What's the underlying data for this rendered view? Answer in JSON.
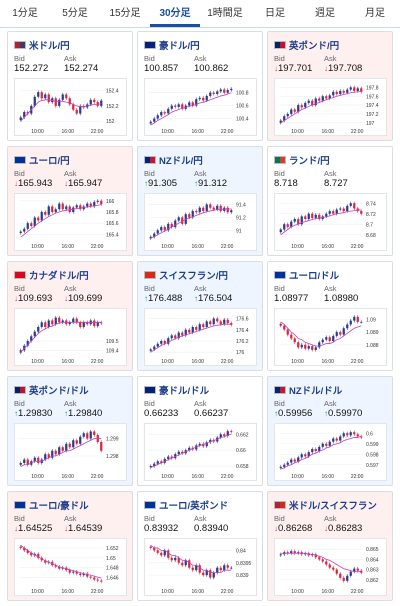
{
  "timeframe_tabs": [
    {
      "label": "1分足",
      "active": false
    },
    {
      "label": "5分足",
      "active": false
    },
    {
      "label": "15分足",
      "active": false
    },
    {
      "label": "30分足",
      "active": true
    },
    {
      "label": "1時間足",
      "active": false
    },
    {
      "label": "日足",
      "active": false
    },
    {
      "label": "週足",
      "active": false
    },
    {
      "label": "月足",
      "active": false
    }
  ],
  "labels": {
    "bid": "Bid",
    "ask": "Ask"
  },
  "colors": {
    "up_candle": "#2a3b8f",
    "down_candle": "#d9263b",
    "ma_line": "#c23fbf",
    "up_arrow": "#18a34a",
    "down_arrow": "#d6336c"
  },
  "pairs": [
    {
      "name": "米ドル/円",
      "flag": [
        "#b22234",
        "#3c3b6e"
      ],
      "bg": "white",
      "bid": "152.272",
      "ask": "152.274",
      "dir": "none",
      "x_ticks": [
        "10:00",
        "16:00",
        "22:00"
      ],
      "y_ticks": [
        "152.4",
        "152.2",
        "152"
      ],
      "y_range": [
        151.95,
        152.5
      ],
      "closes": [
        152.05,
        152.12,
        152.1,
        152.2,
        152.32,
        152.38,
        152.3,
        152.35,
        152.25,
        152.3,
        152.2,
        152.28,
        152.35,
        152.3,
        152.22,
        152.15,
        152.1,
        152.2,
        152.18,
        152.22,
        152.28,
        152.25,
        152.2,
        152.27
      ],
      "ma": [
        152.0,
        152.05,
        152.1,
        152.15,
        152.2,
        152.25,
        152.27,
        152.28,
        152.28,
        152.27,
        152.26,
        152.26,
        152.26,
        152.25,
        152.24,
        152.22,
        152.2,
        152.19,
        152.19,
        152.2,
        152.21,
        152.22,
        152.22,
        152.23
      ]
    },
    {
      "name": "豪ドル/円",
      "flag": [
        "#00247d",
        "#00247d"
      ],
      "bg": "white",
      "bid": "100.857",
      "ask": "100.862",
      "dir": "none",
      "x_ticks": [
        "10:00",
        "16:00",
        "22:00"
      ],
      "y_ticks": [
        "100.8",
        "100.6",
        "100.4"
      ],
      "y_range": [
        100.3,
        100.95
      ],
      "closes": [
        100.35,
        100.4,
        100.45,
        100.5,
        100.48,
        100.55,
        100.6,
        100.58,
        100.62,
        100.55,
        100.6,
        100.65,
        100.6,
        100.7,
        100.72,
        100.68,
        100.75,
        100.8,
        100.78,
        100.82,
        100.85,
        100.8,
        100.84,
        100.86
      ],
      "ma": [
        100.3,
        100.33,
        100.37,
        100.4,
        100.43,
        100.46,
        100.5,
        100.52,
        100.54,
        100.56,
        100.57,
        100.59,
        100.6,
        100.62,
        100.64,
        100.65,
        100.67,
        100.69,
        100.71,
        100.73,
        100.75,
        100.76,
        100.78,
        100.8
      ]
    },
    {
      "name": "英ポンド/円",
      "flag": [
        "#012169",
        "#c8102e"
      ],
      "bg": "pink",
      "bid": "197.701",
      "ask": "197.708",
      "dir": "down",
      "x_ticks": [
        "10:00",
        "16:00",
        "22:00"
      ],
      "y_ticks": [
        "197.8",
        "197.6",
        "197.4",
        "197.2",
        "197"
      ],
      "y_range": [
        196.95,
        197.9
      ],
      "closes": [
        197.05,
        197.15,
        197.2,
        197.3,
        197.25,
        197.4,
        197.35,
        197.45,
        197.5,
        197.4,
        197.55,
        197.5,
        197.6,
        197.55,
        197.62,
        197.7,
        197.65,
        197.72,
        197.68,
        197.75,
        197.8,
        197.72,
        197.78,
        197.7
      ],
      "ma": [
        197.0,
        197.05,
        197.1,
        197.15,
        197.2,
        197.25,
        197.3,
        197.33,
        197.37,
        197.4,
        197.43,
        197.46,
        197.49,
        197.52,
        197.55,
        197.57,
        197.6,
        197.62,
        197.64,
        197.66,
        197.68,
        197.69,
        197.7,
        197.71
      ]
    },
    {
      "name": "ユーロ/円",
      "flag": [
        "#003399",
        "#003399"
      ],
      "bg": "pink",
      "bid": "165.943",
      "ask": "165.947",
      "dir": "down",
      "x_ticks": [
        "10:00",
        "16:00",
        "22:00"
      ],
      "y_ticks": [
        "166",
        "165.8",
        "165.6",
        "165.4"
      ],
      "y_range": [
        165.3,
        166.05
      ],
      "closes": [
        165.45,
        165.5,
        165.6,
        165.55,
        165.7,
        165.65,
        165.8,
        165.75,
        165.9,
        165.8,
        165.85,
        165.95,
        165.85,
        165.9,
        165.8,
        165.88,
        165.92,
        165.85,
        165.9,
        165.95,
        165.9,
        165.98,
        166.0,
        165.94
      ],
      "ma": [
        165.35,
        165.4,
        165.45,
        165.5,
        165.55,
        165.6,
        165.64,
        165.68,
        165.72,
        165.75,
        165.78,
        165.8,
        165.82,
        165.83,
        165.84,
        165.85,
        165.86,
        165.87,
        165.88,
        165.89,
        165.9,
        165.91,
        165.92,
        165.93
      ]
    },
    {
      "name": "NZドル/円",
      "flag": [
        "#00247d",
        "#cc142b"
      ],
      "bg": "blue",
      "bid": "91.305",
      "ask": "91.312",
      "dir": "up",
      "x_ticks": [
        "10:00",
        "16:00",
        "22:00"
      ],
      "y_ticks": [
        "91.4",
        "91.2",
        "91"
      ],
      "y_range": [
        90.85,
        91.5
      ],
      "closes": [
        90.9,
        90.95,
        91.0,
        91.05,
        91.0,
        91.1,
        91.05,
        91.15,
        91.2,
        91.1,
        91.25,
        91.2,
        91.3,
        91.28,
        91.35,
        91.3,
        91.4,
        91.35,
        91.32,
        91.38,
        91.3,
        91.35,
        91.28,
        91.31
      ],
      "ma": [
        90.88,
        90.9,
        90.93,
        90.96,
        90.99,
        91.02,
        91.05,
        91.08,
        91.11,
        91.14,
        91.17,
        91.19,
        91.21,
        91.23,
        91.25,
        91.27,
        91.29,
        91.3,
        91.31,
        91.32,
        91.32,
        91.33,
        91.33,
        91.33
      ]
    },
    {
      "name": "ランド/円",
      "flag": [
        "#007a4d",
        "#de3831"
      ],
      "bg": "white",
      "bid": "8.718",
      "ask": "8.727",
      "dir": "none",
      "x_ticks": [
        "10:00",
        "16:00",
        "22:00"
      ],
      "y_ticks": [
        "8.74",
        "8.72",
        "8.7",
        "8.68"
      ],
      "y_range": [
        8.67,
        8.75
      ],
      "closes": [
        8.69,
        8.7,
        8.695,
        8.705,
        8.71,
        8.7,
        8.715,
        8.71,
        8.72,
        8.712,
        8.718,
        8.71,
        8.715,
        8.72,
        8.725,
        8.72,
        8.728,
        8.73,
        8.725,
        8.735,
        8.74,
        8.73,
        8.725,
        8.72
      ],
      "ma": [
        8.68,
        8.685,
        8.69,
        8.695,
        8.698,
        8.7,
        8.703,
        8.705,
        8.707,
        8.709,
        8.711,
        8.712,
        8.713,
        8.714,
        8.716,
        8.718,
        8.72,
        8.721,
        8.722,
        8.724,
        8.725,
        8.726,
        8.727,
        8.727
      ]
    },
    {
      "name": "カナダドル/円",
      "flag": [
        "#d80621",
        "#d80621"
      ],
      "bg": "pink",
      "bid": "109.693",
      "ask": "109.699",
      "dir": "down",
      "x_ticks": [
        "10:00",
        "16:00",
        "22:00"
      ],
      "y_ticks": [
        "109.5",
        "109.4"
      ],
      "y_range": [
        109.35,
        109.8
      ],
      "closes": [
        109.4,
        109.45,
        109.5,
        109.55,
        109.6,
        109.65,
        109.7,
        109.65,
        109.72,
        109.68,
        109.75,
        109.7,
        109.72,
        109.68,
        109.7,
        109.74,
        109.7,
        109.65,
        109.7,
        109.68,
        109.72,
        109.66,
        109.7,
        109.69
      ],
      "ma": [
        109.38,
        109.42,
        109.46,
        109.5,
        109.54,
        109.58,
        109.61,
        109.63,
        109.65,
        109.66,
        109.68,
        109.69,
        109.7,
        109.7,
        109.7,
        109.7,
        109.7,
        109.7,
        109.7,
        109.7,
        109.7,
        109.7,
        109.7,
        109.7
      ]
    },
    {
      "name": "スイスフラン/円",
      "flag": [
        "#d52b1e",
        "#d52b1e"
      ],
      "bg": "blue",
      "bid": "176.488",
      "ask": "176.504",
      "dir": "up",
      "x_ticks": [
        "10:00",
        "16:00",
        "22:00"
      ],
      "y_ticks": [
        "176.6",
        "176.4",
        "176.2",
        "176"
      ],
      "y_range": [
        175.95,
        176.7
      ],
      "closes": [
        176.05,
        176.1,
        176.15,
        176.2,
        176.15,
        176.25,
        176.3,
        176.25,
        176.35,
        176.3,
        176.4,
        176.35,
        176.45,
        176.4,
        176.5,
        176.45,
        176.55,
        176.5,
        176.6,
        176.55,
        176.5,
        176.58,
        176.52,
        176.49
      ],
      "ma": [
        176.0,
        176.04,
        176.08,
        176.12,
        176.15,
        176.18,
        176.21,
        176.24,
        176.27,
        176.29,
        176.31,
        176.33,
        176.35,
        176.37,
        176.39,
        176.41,
        176.43,
        176.45,
        176.47,
        176.48,
        176.49,
        176.5,
        176.5,
        176.5
      ]
    },
    {
      "name": "ユーロ/ドル",
      "flag": [
        "#003399",
        "#003399"
      ],
      "bg": "white",
      "bid": "1.08977",
      "ask": "1.08980",
      "dir": "none",
      "x_ticks": [
        "10:00",
        "16:00",
        "22:00"
      ],
      "y_ticks": [
        "1.09",
        "1.089",
        "1.088"
      ],
      "y_range": [
        1.0872,
        1.0905
      ],
      "closes": [
        1.0895,
        1.0892,
        1.0888,
        1.0885,
        1.0882,
        1.0878,
        1.088,
        1.0877,
        1.0879,
        1.0876,
        1.0878,
        1.0882,
        1.0884,
        1.0886,
        1.0883,
        1.0887,
        1.089,
        1.0888,
        1.0893,
        1.0896,
        1.0899,
        1.0902,
        1.0898,
        1.0898
      ],
      "ma": [
        1.0898,
        1.0896,
        1.0893,
        1.089,
        1.0888,
        1.0885,
        1.0884,
        1.0882,
        1.0881,
        1.088,
        1.0879,
        1.0879,
        1.088,
        1.0881,
        1.0881,
        1.0882,
        1.0884,
        1.0885,
        1.0887,
        1.0889,
        1.0891,
        1.0893,
        1.0894,
        1.0895
      ]
    },
    {
      "name": "英ポンド/ドル",
      "flag": [
        "#012169",
        "#c8102e"
      ],
      "bg": "blue",
      "bid": "1.29830",
      "ask": "1.29840",
      "dir": "up",
      "x_ticks": [
        "10:00",
        "16:00",
        "22:00"
      ],
      "y_ticks": [
        "1.299",
        "1.298"
      ],
      "y_range": [
        1.2972,
        1.2996
      ],
      "closes": [
        1.2976,
        1.2978,
        1.2975,
        1.2977,
        1.2979,
        1.2976,
        1.2978,
        1.2981,
        1.2979,
        1.2983,
        1.2981,
        1.2985,
        1.2983,
        1.2987,
        1.2985,
        1.2989,
        1.2987,
        1.2991,
        1.2993,
        1.299,
        1.2994,
        1.2992,
        1.2988,
        1.2983
      ],
      "ma": [
        1.2974,
        1.2975,
        1.2975,
        1.2976,
        1.2977,
        1.2977,
        1.2977,
        1.2978,
        1.2979,
        1.298,
        1.298,
        1.2981,
        1.2982,
        1.2983,
        1.2983,
        1.2984,
        1.2985,
        1.2986,
        1.2987,
        1.2988,
        1.2989,
        1.299,
        1.299,
        1.299
      ]
    },
    {
      "name": "豪ドル/ドル",
      "flag": [
        "#00247d",
        "#00247d"
      ],
      "bg": "white",
      "bid": "0.66233",
      "ask": "0.66237",
      "dir": "none",
      "x_ticks": [
        "10:00",
        "16:00",
        "22:00"
      ],
      "y_ticks": [
        "0.662",
        "0.66",
        "0.658"
      ],
      "y_range": [
        0.6575,
        0.6628
      ],
      "closes": [
        0.658,
        0.6583,
        0.6586,
        0.6584,
        0.6589,
        0.6592,
        0.659,
        0.6595,
        0.6598,
        0.6596,
        0.66,
        0.6603,
        0.6601,
        0.6606,
        0.6608,
        0.6605,
        0.661,
        0.6613,
        0.6611,
        0.6616,
        0.662,
        0.6618,
        0.6624,
        0.6623
      ],
      "ma": [
        0.6578,
        0.658,
        0.6582,
        0.6584,
        0.6586,
        0.6588,
        0.659,
        0.6592,
        0.6594,
        0.6596,
        0.6598,
        0.66,
        0.6602,
        0.6604,
        0.6606,
        0.6607,
        0.6609,
        0.6611,
        0.6612,
        0.6614,
        0.6616,
        0.6617,
        0.6619,
        0.662
      ]
    },
    {
      "name": "NZドル/ドル",
      "flag": [
        "#00247d",
        "#cc142b"
      ],
      "bg": "blue",
      "bid": "0.59956",
      "ask": "0.59970",
      "dir": "up",
      "x_ticks": [
        "10:00",
        "16:00",
        "22:00"
      ],
      "y_ticks": [
        "0.6",
        "0.599",
        "0.598",
        "0.597"
      ],
      "y_range": [
        0.5965,
        0.6005
      ],
      "closes": [
        0.5968,
        0.597,
        0.5972,
        0.5975,
        0.5973,
        0.5977,
        0.598,
        0.5978,
        0.5982,
        0.5985,
        0.5983,
        0.5987,
        0.599,
        0.5988,
        0.5992,
        0.5995,
        0.5993,
        0.5997,
        0.6,
        0.5998,
        0.6001,
        0.5999,
        0.5997,
        0.5996
      ],
      "ma": [
        0.5966,
        0.5967,
        0.5969,
        0.597,
        0.5972,
        0.5973,
        0.5975,
        0.5976,
        0.5978,
        0.598,
        0.5981,
        0.5983,
        0.5984,
        0.5986,
        0.5987,
        0.5989,
        0.599,
        0.5991,
        0.5993,
        0.5994,
        0.5995,
        0.5996,
        0.5996,
        0.5997
      ]
    },
    {
      "name": "ユーロ/豪ドル",
      "flag": [
        "#003399",
        "#003399"
      ],
      "bg": "pink",
      "bid": "1.64525",
      "ask": "1.64539",
      "dir": "down",
      "x_ticks": [
        "10:00",
        "16:00",
        "22:00"
      ],
      "y_ticks": [
        "1.652",
        "1.65",
        "1.648",
        "1.646"
      ],
      "y_range": [
        1.6445,
        1.653
      ],
      "closes": [
        1.652,
        1.6515,
        1.651,
        1.6505,
        1.6508,
        1.65,
        1.6495,
        1.649,
        1.6492,
        1.6485,
        1.6482,
        1.6478,
        1.648,
        1.6475,
        1.647,
        1.6472,
        1.6468,
        1.6465,
        1.6468,
        1.6462,
        1.646,
        1.6456,
        1.6454,
        1.6452
      ],
      "ma": [
        1.6525,
        1.652,
        1.6515,
        1.651,
        1.6506,
        1.6502,
        1.6498,
        1.6494,
        1.6491,
        1.6488,
        1.6485,
        1.6482,
        1.648,
        1.6478,
        1.6476,
        1.6474,
        1.6472,
        1.647,
        1.6468,
        1.6466,
        1.6465,
        1.6463,
        1.6461,
        1.6459
      ]
    },
    {
      "name": "ユーロ/英ポンド",
      "flag": [
        "#003399",
        "#003399"
      ],
      "bg": "white",
      "bid": "0.83932",
      "ask": "0.83940",
      "dir": "none",
      "x_ticks": [
        "10:00",
        "16:00",
        "22:00"
      ],
      "y_ticks": [
        "0.84",
        "0.8395",
        "0.839"
      ],
      "y_range": [
        0.8386,
        0.8403
      ],
      "closes": [
        0.8401,
        0.84,
        0.8399,
        0.8398,
        0.84,
        0.8397,
        0.8396,
        0.8397,
        0.8395,
        0.8394,
        0.8396,
        0.8393,
        0.8392,
        0.8394,
        0.8391,
        0.839,
        0.8392,
        0.8389,
        0.8391,
        0.8393,
        0.8392,
        0.8394,
        0.8393,
        0.8393
      ],
      "ma": [
        0.8402,
        0.8401,
        0.8401,
        0.84,
        0.84,
        0.8399,
        0.8398,
        0.8398,
        0.8397,
        0.8396,
        0.8396,
        0.8395,
        0.8394,
        0.8394,
        0.8393,
        0.8392,
        0.8392,
        0.8391,
        0.8391,
        0.8391,
        0.8391,
        0.8392,
        0.8392,
        0.8392
      ]
    },
    {
      "name": "米ドル/スイスフラン",
      "flag": [
        "#b22234",
        "#d52b1e"
      ],
      "bg": "pink",
      "bid": "0.86268",
      "ask": "0.86283",
      "dir": "down",
      "x_ticks": [
        "10:00",
        "16:00",
        "22:00"
      ],
      "y_ticks": [
        "0.865",
        "0.864",
        "0.863",
        "0.862"
      ],
      "y_range": [
        0.8615,
        0.8656
      ],
      "closes": [
        0.8645,
        0.8647,
        0.8646,
        0.8648,
        0.8646,
        0.8647,
        0.8645,
        0.8646,
        0.8644,
        0.8645,
        0.8642,
        0.864,
        0.8638,
        0.8635,
        0.8632,
        0.863,
        0.8626,
        0.8622,
        0.8619,
        0.8624,
        0.8628,
        0.8631,
        0.8629,
        0.8627
      ],
      "ma": [
        0.8646,
        0.8646,
        0.8646,
        0.8646,
        0.8646,
        0.8646,
        0.8646,
        0.8646,
        0.8645,
        0.8645,
        0.8644,
        0.8643,
        0.8642,
        0.864,
        0.8639,
        0.8637,
        0.8635,
        0.8633,
        0.8631,
        0.863,
        0.8629,
        0.8628,
        0.8628,
        0.8628
      ]
    }
  ]
}
